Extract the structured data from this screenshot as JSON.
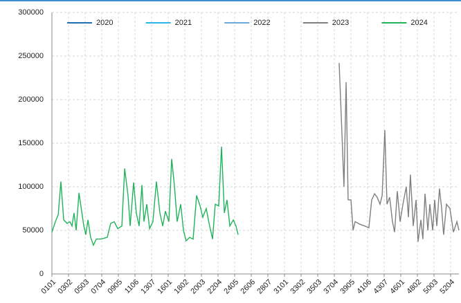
{
  "chart_data": {
    "type": "line",
    "xlim": [
      0,
      24.5
    ],
    "xticks": [
      {
        "value": 0,
        "label": "0101"
      },
      {
        "value": 1,
        "label": "0302"
      },
      {
        "value": 2,
        "label": "0503"
      },
      {
        "value": 3,
        "label": "0704"
      },
      {
        "value": 4,
        "label": "0905"
      },
      {
        "value": 5,
        "label": "1106"
      },
      {
        "value": 6,
        "label": "1307"
      },
      {
        "value": 7,
        "label": "1601"
      },
      {
        "value": 8,
        "label": "1802"
      },
      {
        "value": 9,
        "label": "2003"
      },
      {
        "value": 10,
        "label": "2204"
      },
      {
        "value": 11,
        "label": "2405"
      },
      {
        "value": 12,
        "label": "2606"
      },
      {
        "value": 13,
        "label": "2807"
      },
      {
        "value": 14,
        "label": "3101"
      },
      {
        "value": 15,
        "label": "3302"
      },
      {
        "value": 16,
        "label": "3503"
      },
      {
        "value": 17,
        "label": "3704"
      },
      {
        "value": 18,
        "label": "3905"
      },
      {
        "value": 19,
        "label": "4106"
      },
      {
        "value": 20,
        "label": "4307"
      },
      {
        "value": 21,
        "label": "4601"
      },
      {
        "value": 22,
        "label": "4802"
      },
      {
        "value": 23,
        "label": "5003"
      },
      {
        "value": 24,
        "label": "5204"
      }
    ],
    "ylim": [
      0,
      300000
    ],
    "yticks": [
      0,
      50000,
      100000,
      150000,
      200000,
      250000,
      300000
    ],
    "grid": true,
    "legend": "top",
    "series": [
      {
        "name": "2020",
        "color": "#1f6fb5",
        "x": [],
        "values": []
      },
      {
        "name": "2021",
        "color": "#2bb5e8",
        "x": [],
        "values": []
      },
      {
        "name": "2022",
        "color": "#6aa8dc",
        "x": [],
        "values": []
      },
      {
        "name": "2023",
        "color": "#7f7f7f",
        "x": [
          17.29,
          17.46,
          17.58,
          17.71,
          17.83,
          18,
          18.13,
          18.25,
          18.54,
          18.83,
          19.08,
          19.25,
          19.42,
          19.58,
          19.75,
          19.88,
          20.04,
          20.17,
          20.33,
          20.5,
          20.63,
          20.79,
          20.96,
          21.13,
          21.33,
          21.46,
          21.58,
          21.75,
          21.92,
          22.04,
          22.21,
          22.33,
          22.46,
          22.63,
          22.75,
          22.92,
          23.04,
          23.17,
          23.33,
          23.46,
          23.58,
          23.75,
          23.96,
          24.17,
          24.38,
          24.5
        ],
        "values": [
          242000,
          160000,
          100000,
          220000,
          85000,
          85000,
          50000,
          60000,
          57000,
          55000,
          53000,
          85000,
          92000,
          88000,
          80000,
          90000,
          165000,
          80000,
          88000,
          60000,
          48000,
          95000,
          60000,
          80000,
          100000,
          65000,
          114000,
          55000,
          85000,
          37000,
          62000,
          40000,
          92000,
          50000,
          80000,
          50000,
          85000,
          55000,
          98000,
          75000,
          45000,
          80000,
          75000,
          48000,
          60000,
          50000
        ]
      },
      {
        "name": "2024",
        "color": "#1fb35a",
        "x": [
          0,
          0.21,
          0.38,
          0.54,
          0.71,
          0.92,
          1.08,
          1.21,
          1.33,
          1.46,
          1.63,
          1.79,
          1.92,
          2.04,
          2.17,
          2.33,
          2.5,
          2.67,
          2.96,
          3.33,
          3.54,
          3.75,
          3.96,
          4.21,
          4.38,
          4.58,
          4.71,
          4.92,
          5.08,
          5.25,
          5.42,
          5.54,
          5.71,
          5.88,
          6.08,
          6.29,
          6.5,
          6.67,
          6.83,
          7.04,
          7.21,
          7.38,
          7.54,
          7.75,
          7.92,
          8.08,
          8.29,
          8.5,
          8.71,
          8.92,
          9.08,
          9.29,
          9.46,
          9.67,
          9.83,
          10.04,
          10.21,
          10.38,
          10.54,
          10.71,
          10.92,
          11.08,
          11.21
        ],
        "values": [
          48000,
          60000,
          68000,
          106000,
          62000,
          58000,
          60000,
          55000,
          70000,
          50000,
          93000,
          72000,
          55000,
          45000,
          62000,
          42000,
          33000,
          40000,
          40000,
          42000,
          58000,
          60000,
          52000,
          55000,
          121000,
          90000,
          55000,
          105000,
          70000,
          55000,
          102000,
          60000,
          80000,
          52000,
          60000,
          106000,
          70000,
          55000,
          72000,
          60000,
          132000,
          100000,
          60000,
          80000,
          50000,
          38000,
          42000,
          40000,
          90000,
          78000,
          65000,
          75000,
          58000,
          40000,
          80000,
          78000,
          146000,
          70000,
          85000,
          55000,
          62000,
          55000,
          45000
        ]
      }
    ]
  }
}
